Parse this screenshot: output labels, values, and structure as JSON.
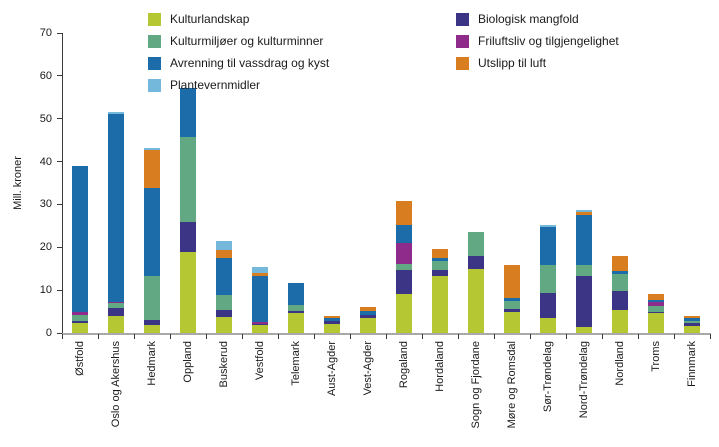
{
  "chart_data": {
    "type": "bar",
    "stacked": true,
    "ylabel": "Mill. kroner",
    "ylim": [
      0,
      70
    ],
    "y_ticks": [
      0,
      10,
      20,
      30,
      40,
      50,
      60,
      70
    ],
    "grid": false,
    "legend_position": "top",
    "categories": [
      "Østfold",
      "Oslo og Akershus",
      "Hedmark",
      "Oppland",
      "Buskerud",
      "Vestfold",
      "Telemark",
      "Aust-Agder",
      "Vest-Agder",
      "Rogaland",
      "Hordaland",
      "Sogn og Fjordane",
      "Møre og Romsdal",
      "Sør-Trøndelag",
      "Nord-Trøndelag",
      "Nordland",
      "Troms",
      "Finnmark"
    ],
    "series": [
      {
        "name": "Kulturlandskap",
        "color": "#b5c733",
        "values": [
          2.3,
          4.0,
          1.9,
          19.0,
          3.7,
          1.8,
          4.7,
          2.1,
          3.4,
          9.1,
          13.2,
          15.0,
          5.0,
          3.6,
          1.5,
          5.4,
          4.6,
          1.6
        ]
      },
      {
        "name": "Biologisk mangfold",
        "color": "#3c3585",
        "values": [
          0.6,
          1.9,
          1.2,
          7.0,
          1.7,
          0.3,
          0.5,
          0.6,
          0.8,
          5.6,
          1.6,
          2.9,
          0.5,
          5.7,
          11.7,
          4.3,
          0.4,
          0.8
        ]
      },
      {
        "name": "Kulturmiljøer og kulturminner",
        "color": "#62a983",
        "values": [
          1.4,
          1.0,
          10.1,
          19.8,
          3.5,
          0,
          1.3,
          0,
          0,
          1.4,
          1.9,
          5.6,
          2.0,
          6.6,
          2.7,
          4.1,
          1.4,
          0.5
        ]
      },
      {
        "name": "Friluftsliv og tilgjengelighet",
        "color": "#8f2b8a",
        "values": [
          0.5,
          0.4,
          0,
          0,
          0,
          0.5,
          0,
          0,
          0,
          4.8,
          0,
          0,
          0,
          0,
          0,
          0,
          0.8,
          0
        ]
      },
      {
        "name": "Avrenning til vassdrag og kyst",
        "color": "#1c6ca9",
        "values": [
          34.2,
          43.8,
          20.6,
          11.3,
          8.5,
          10.8,
          5.2,
          0.7,
          1.0,
          4.2,
          0.7,
          0,
          0.6,
          8.8,
          11.7,
          0.6,
          0.6,
          0.5
        ]
      },
      {
        "name": "Utslipp til luft",
        "color": "#d87d20",
        "values": [
          0,
          0,
          8.8,
          0,
          2.0,
          0.7,
          0,
          0.5,
          0.8,
          5.6,
          2.1,
          0,
          7.8,
          0,
          0.6,
          3.6,
          1.2,
          0.5
        ]
      },
      {
        "name": "Plantevernmidler",
        "color": "#74b9dc",
        "values": [
          0,
          0.5,
          0.6,
          0,
          2.1,
          1.4,
          0,
          0,
          0,
          0,
          0,
          0,
          0,
          0.4,
          0.6,
          0,
          0,
          0
        ]
      }
    ]
  },
  "legend": {
    "column1": [
      {
        "label": "Kulturlandskap",
        "color": "#b5c733"
      },
      {
        "label": "Kulturmiljøer og kulturminner",
        "color": "#62a983"
      },
      {
        "label": "Avrenning til vassdrag og kyst",
        "color": "#1c6ca9"
      },
      {
        "label": "Plantevernmidler",
        "color": "#74b9dc"
      }
    ],
    "column2": [
      {
        "label": "Biologisk mangfold",
        "color": "#3c3585"
      },
      {
        "label": "Friluftsliv og tilgjengelighet",
        "color": "#8f2b8a"
      },
      {
        "label": "Utslipp til luft",
        "color": "#d87d20"
      }
    ]
  },
  "y_axis": {
    "label": "Mill. kroner"
  }
}
